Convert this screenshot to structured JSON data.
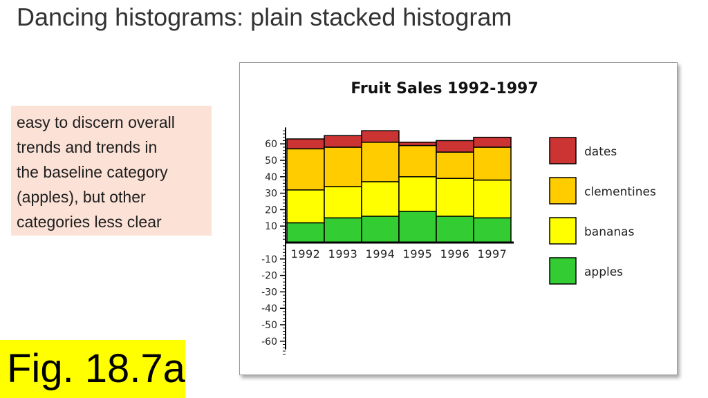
{
  "slide": {
    "title": "Dancing histograms: plain stacked histogram",
    "note_lines": [
      "easy to discern overall",
      "trends and trends in",
      "the baseline category",
      "(apples), but other",
      "categories less clear"
    ],
    "figure_label": "Fig. 18.7a"
  },
  "colors": {
    "apples": "#33cc33",
    "bananas": "#ffff00",
    "clementines": "#ffcc00",
    "dates": "#cc3333",
    "note_background": "#fbe1d6",
    "figure_label_background": "#ffff00"
  },
  "chart_data": {
    "type": "bar",
    "stacked": true,
    "title": "Fruit Sales 1992-1997",
    "categories": [
      "1992",
      "1993",
      "1994",
      "1995",
      "1996",
      "1997"
    ],
    "series": [
      {
        "name": "apples",
        "values": [
          12,
          15,
          16,
          19,
          16,
          15
        ]
      },
      {
        "name": "bananas",
        "values": [
          20,
          19,
          21,
          21,
          23,
          23
        ]
      },
      {
        "name": "clementines",
        "values": [
          25,
          24,
          24,
          19,
          16,
          20
        ]
      },
      {
        "name": "dates",
        "values": [
          6,
          7,
          7,
          2,
          7,
          6
        ]
      }
    ],
    "legend_order": [
      "dates",
      "clementines",
      "bananas",
      "apples"
    ],
    "legend_position": "right",
    "ylim": [
      -65,
      70
    ],
    "yticks": [
      60,
      50,
      40,
      30,
      20,
      10,
      -10,
      -20,
      -30,
      -40,
      -50,
      -60
    ],
    "xlabel": "",
    "ylabel": "",
    "grid": false
  }
}
